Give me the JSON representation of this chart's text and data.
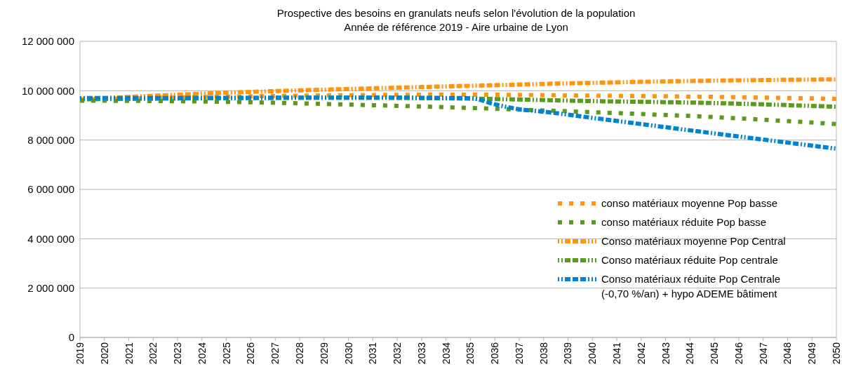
{
  "chart_data": {
    "type": "line",
    "title": "Prospective des besoins en granulats neufs selon l'évolution de la population",
    "subtitle": "Année de référence 2019 - Aire urbaine de Lyon",
    "xlim": [
      2019,
      2050
    ],
    "xticks": [
      2019,
      2020,
      2021,
      2022,
      2023,
      2024,
      2025,
      2026,
      2027,
      2028,
      2029,
      2030,
      2031,
      2032,
      2033,
      2034,
      2035,
      2036,
      2037,
      2038,
      2039,
      2040,
      2041,
      2042,
      2043,
      2044,
      2045,
      2046,
      2047,
      2048,
      2049,
      2050
    ],
    "ylim": [
      0,
      12000000
    ],
    "yticks": [
      {
        "value": 0,
        "label": "0"
      },
      {
        "value": 2000000,
        "label": "2 000 000"
      },
      {
        "value": 4000000,
        "label": "4 000 000"
      },
      {
        "value": 6000000,
        "label": "6 000 000"
      },
      {
        "value": 8000000,
        "label": "8 000 000"
      },
      {
        "value": 10000000,
        "label": "10 000 000"
      },
      {
        "value": 12000000,
        "label": "12 000 000"
      }
    ],
    "grid": "y",
    "legend": "right",
    "series": [
      {
        "name": "conso matériaux moyenne Pop basse",
        "color": "#ff950e",
        "line_style": "dotted",
        "x": [
          2019,
          2025,
          2030,
          2035,
          2040,
          2045,
          2050
        ],
        "values": [
          9650000,
          9760000,
          9820000,
          9840000,
          9800000,
          9750000,
          9670000
        ]
      },
      {
        "name": "conso matériaux réduite Pop basse",
        "color": "#579d1c",
        "line_style": "dotted",
        "x": [
          2019,
          2025,
          2030,
          2035,
          2040,
          2045,
          2050
        ],
        "values": [
          9600000,
          9550000,
          9440000,
          9300000,
          9130000,
          8930000,
          8650000
        ]
      },
      {
        "name": "Conso matériaux moyenne Pop Central",
        "color": "#ff950e",
        "line_style": "dashed",
        "x": [
          2019,
          2025,
          2030,
          2035,
          2040,
          2045,
          2050
        ],
        "values": [
          9650000,
          9920000,
          10070000,
          10200000,
          10320000,
          10410000,
          10460000
        ]
      },
      {
        "name": "Conso matériaux réduite Pop centrale",
        "color": "#579d1c",
        "line_style": "dashed",
        "x": [
          2019,
          2025,
          2030,
          2035,
          2040,
          2045,
          2050
        ],
        "values": [
          9650000,
          9700000,
          9720000,
          9680000,
          9580000,
          9500000,
          9350000
        ]
      },
      {
        "name": "Conso matériaux réduite Pop Centrale (-0,70 %/an) + hypo ADEME bâtiment",
        "color": "#0084d1",
        "line_style": "dashed",
        "x": [
          2019,
          2025,
          2030,
          2035,
          2036,
          2037,
          2038,
          2040,
          2045,
          2050
        ],
        "values": [
          9700000,
          9710000,
          9720000,
          9700000,
          9450000,
          9250000,
          9150000,
          8900000,
          8270000,
          7650000
        ]
      }
    ]
  }
}
